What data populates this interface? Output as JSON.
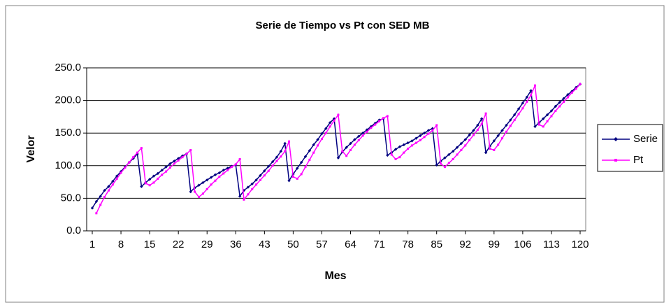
{
  "chart_data": {
    "type": "line",
    "title": "Serie de Tiempo vs Pt con SED MB",
    "x_label": "Mes",
    "y_label": "Velor",
    "x": [
      1,
      2,
      3,
      4,
      5,
      6,
      7,
      8,
      9,
      10,
      11,
      12,
      13,
      14,
      15,
      16,
      17,
      18,
      19,
      20,
      21,
      22,
      23,
      24,
      25,
      26,
      27,
      28,
      29,
      30,
      31,
      32,
      33,
      34,
      35,
      36,
      37,
      38,
      39,
      40,
      41,
      42,
      43,
      44,
      45,
      46,
      47,
      48,
      49,
      50,
      51,
      52,
      53,
      54,
      55,
      56,
      57,
      58,
      59,
      60,
      61,
      62,
      63,
      64,
      65,
      66,
      67,
      68,
      69,
      70,
      71,
      72,
      73,
      74,
      75,
      76,
      77,
      78,
      79,
      80,
      81,
      82,
      83,
      84,
      85,
      86,
      87,
      88,
      89,
      90,
      91,
      92,
      93,
      94,
      95,
      96,
      97,
      98,
      99,
      100,
      101,
      102,
      103,
      104,
      105,
      106,
      107,
      108,
      109,
      110,
      111,
      112,
      113,
      114,
      115,
      116,
      117,
      118,
      119,
      120
    ],
    "xlim": [
      1,
      120
    ],
    "xticks": [
      1,
      8,
      15,
      22,
      29,
      36,
      43,
      50,
      57,
      64,
      71,
      78,
      85,
      92,
      99,
      106,
      113,
      120
    ],
    "ylim": [
      0,
      250
    ],
    "yticks": [
      {
        "value": 0,
        "label": "0.0"
      },
      {
        "value": 50,
        "label": "50.0"
      },
      {
        "value": 100,
        "label": "100.0"
      },
      {
        "value": 150,
        "label": "150.0"
      },
      {
        "value": 200,
        "label": "200.0"
      },
      {
        "value": 250,
        "label": "250.0"
      }
    ],
    "grid": true,
    "legend": "right",
    "series": [
      {
        "name": "Serie",
        "color": "#000080",
        "marker": "diamond",
        "values": [
          35,
          45,
          53,
          62,
          68,
          76,
          84,
          91,
          98,
          105,
          111,
          118,
          68,
          74,
          79,
          84,
          88,
          93,
          98,
          103,
          107,
          111,
          115,
          118,
          60,
          66,
          70,
          74,
          78,
          82,
          86,
          89,
          93,
          96,
          99,
          101,
          53,
          62,
          67,
          72,
          78,
          85,
          92,
          99,
          106,
          113,
          122,
          134,
          77,
          87,
          96,
          105,
          114,
          123,
          132,
          140,
          149,
          157,
          166,
          172,
          112,
          121,
          128,
          134,
          140,
          145,
          150,
          155,
          160,
          165,
          170,
          172,
          116,
          120,
          125,
          129,
          132,
          135,
          138,
          142,
          146,
          150,
          154,
          157,
          101,
          107,
          112,
          117,
          122,
          128,
          134,
          140,
          147,
          154,
          162,
          172,
          120,
          130,
          138,
          146,
          154,
          162,
          170,
          178,
          187,
          196,
          205,
          215,
          160,
          166,
          172,
          178,
          184,
          191,
          197,
          203,
          209,
          214,
          220,
          225
        ]
      },
      {
        "name": "Pt",
        "color": "#ff00ff",
        "marker": "square",
        "values": [
          null,
          27,
          40,
          52,
          62,
          71,
          80,
          89,
          97,
          105,
          113,
          120,
          127,
          73,
          70,
          74,
          80,
          86,
          91,
          97,
          103,
          108,
          113,
          118,
          124,
          60,
          52,
          57,
          64,
          71,
          77,
          83,
          88,
          93,
          98,
          102,
          110,
          48,
          56,
          64,
          71,
          78,
          85,
          92,
          100,
          107,
          114,
          122,
          137,
          83,
          80,
          87,
          98,
          109,
          120,
          131,
          141,
          150,
          160,
          169,
          178,
          122,
          115,
          124,
          132,
          139,
          146,
          152,
          158,
          163,
          168,
          173,
          176,
          117,
          110,
          113,
          120,
          126,
          131,
          135,
          139,
          144,
          149,
          154,
          162,
          103,
          98,
          104,
          110,
          117,
          124,
          131,
          139,
          147,
          155,
          164,
          180,
          126,
          124,
          132,
          142,
          152,
          161,
          170,
          179,
          188,
          198,
          208,
          223,
          163,
          160,
          168,
          176,
          184,
          191,
          198,
          205,
          212,
          218,
          225
        ]
      }
    ]
  }
}
